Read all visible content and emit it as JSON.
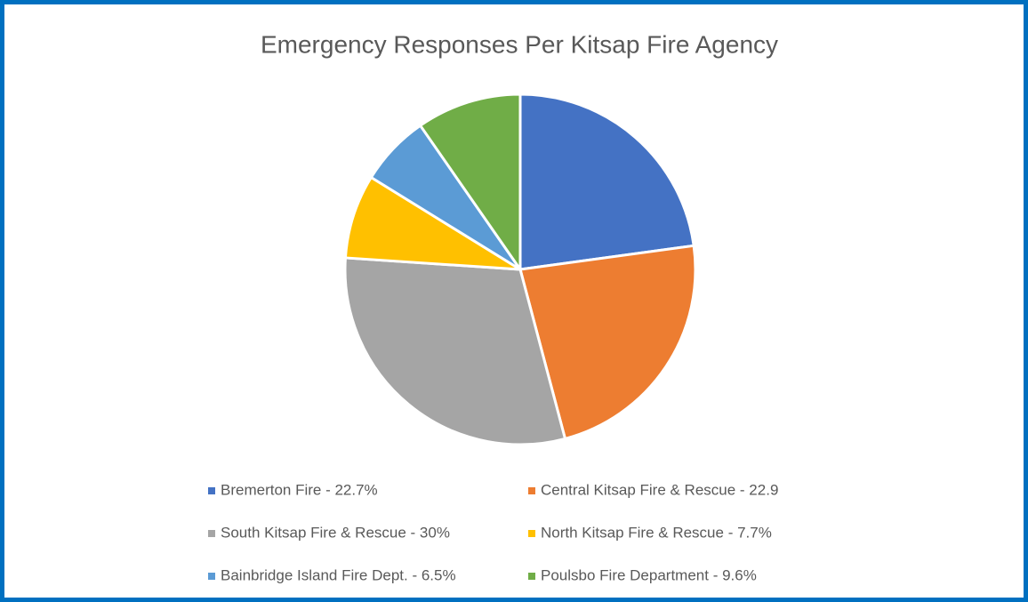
{
  "chart_data": {
    "type": "pie",
    "title": "Emergency Responses Per Kitsap Fire Agency",
    "categories": [
      "Bremerton Fire - 22.7%",
      "Central Kitsap Fire & Rescue - 22.9",
      "South Kitsap Fire & Rescue - 30%",
      "North Kitsap Fire & Rescue - 7.7%",
      "Bainbridge Island Fire Dept. - 6.5%",
      "Poulsbo Fire Department - 9.6%"
    ],
    "values": [
      22.7,
      22.9,
      30,
      7.7,
      6.5,
      9.6
    ],
    "colors": [
      "#4472c4",
      "#ed7d31",
      "#a5a5a5",
      "#ffc000",
      "#5b9bd5",
      "#70ad47"
    ],
    "legend": "bottom"
  }
}
